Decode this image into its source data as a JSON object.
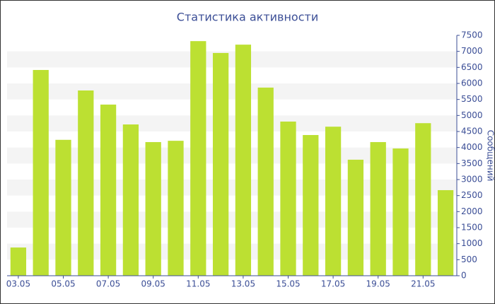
{
  "chart_data": {
    "type": "bar",
    "title": "Статистика активности",
    "y_label": "Сообщений",
    "categories": [
      "03.05",
      null,
      "05.05",
      null,
      "07.05",
      null,
      "09.05",
      null,
      "11.05",
      null,
      "13.05",
      null,
      "15.05",
      null,
      "17.05",
      null,
      "19.05",
      null,
      "21.05",
      null
    ],
    "values": [
      880,
      6420,
      4240,
      5780,
      5340,
      4720,
      4170,
      4210,
      7320,
      6950,
      7210,
      5870,
      4810,
      4390,
      4650,
      3620,
      4170,
      3970,
      4760,
      2670
    ],
    "color": "#bce032",
    "ylim": [
      0,
      7500
    ],
    "yticks": [
      0,
      500,
      1000,
      1500,
      2000,
      2500,
      3000,
      3500,
      4000,
      4500,
      5000,
      5500,
      6000,
      6500,
      7000,
      7500
    ],
    "grid": true
  }
}
